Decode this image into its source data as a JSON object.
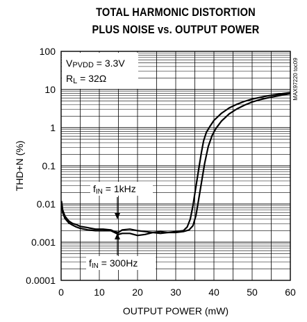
{
  "chart_data": {
    "type": "line",
    "title_line1": "TOTAL HARMONIC DISTORTION",
    "title_line2": "PLUS NOISE vs. OUTPUT POWER",
    "xlabel": "OUTPUT POWER (mW)",
    "ylabel": "THD+N (%)",
    "xlim": [
      0,
      60
    ],
    "ylim": [
      0.0001,
      100
    ],
    "yscale": "log",
    "xticks": [
      "0",
      "10",
      "20",
      "30",
      "40",
      "50",
      "60"
    ],
    "yticks": [
      "0.0001",
      "0.001",
      "0.01",
      "0.1",
      "1",
      "10",
      "100"
    ],
    "grid": true,
    "conditions": {
      "vpvdd_label": "V",
      "vpvdd_sub": "PVDD",
      "vpvdd_value": " = 3.3V",
      "rl_label": "R",
      "rl_sub": "L",
      "rl_value": " = 32Ω"
    },
    "annotations": {
      "fin_1k_label": "f",
      "fin_1k_sub": "IN",
      "fin_1k_value": " = 1kHz",
      "fin_300_label": "f",
      "fin_300_sub": "IN",
      "fin_300_value": " = 300Hz"
    },
    "figure_id": "MAX97220 toc09",
    "series": [
      {
        "x": [
          0.1,
          0.4,
          1,
          2,
          3,
          4,
          5,
          7,
          9,
          11,
          13,
          14,
          15,
          16,
          18,
          20,
          22,
          24,
          26,
          28,
          30,
          32,
          33,
          33.8,
          34.5,
          35.2,
          36,
          36.7,
          37.3,
          38,
          39,
          40,
          42,
          44,
          46,
          48,
          50,
          52,
          54,
          56,
          58,
          60
        ],
        "y": [
          0.012,
          0.007,
          0.0048,
          0.0036,
          0.0031,
          0.0029,
          0.0026,
          0.0024,
          0.0022,
          0.0022,
          0.0021,
          0.0019,
          0.0018,
          0.0021,
          0.0022,
          0.002,
          0.0019,
          0.0018,
          0.0019,
          0.0018,
          0.0019,
          0.002,
          0.0025,
          0.004,
          0.009,
          0.025,
          0.08,
          0.22,
          0.45,
          0.75,
          1.1,
          1.55,
          2.4,
          3.3,
          4.1,
          4.9,
          5.6,
          6.2,
          6.8,
          7.3,
          7.8,
          8.3
        ]
      },
      {
        "x": [
          0.1,
          0.4,
          1,
          2,
          3,
          4,
          5,
          7,
          9,
          11,
          13,
          14,
          15,
          16,
          18,
          20,
          22,
          24,
          26,
          28,
          30,
          32,
          33.5,
          34.5,
          35.3,
          36,
          36.8,
          37.6,
          38.5,
          39.5,
          40.5,
          42,
          44,
          46,
          48,
          50,
          52,
          54,
          56,
          58,
          60
        ],
        "y": [
          0.01,
          0.006,
          0.0042,
          0.0032,
          0.0028,
          0.0025,
          0.0023,
          0.0021,
          0.002,
          0.002,
          0.002,
          0.0018,
          0.0016,
          0.0017,
          0.0017,
          0.0015,
          0.0016,
          0.0018,
          0.0017,
          0.0018,
          0.0018,
          0.0019,
          0.0021,
          0.0027,
          0.005,
          0.013,
          0.04,
          0.12,
          0.32,
          0.62,
          0.95,
          1.5,
          2.3,
          3.1,
          3.9,
          4.7,
          5.4,
          6.0,
          6.6,
          7.2,
          7.8
        ]
      }
    ]
  }
}
